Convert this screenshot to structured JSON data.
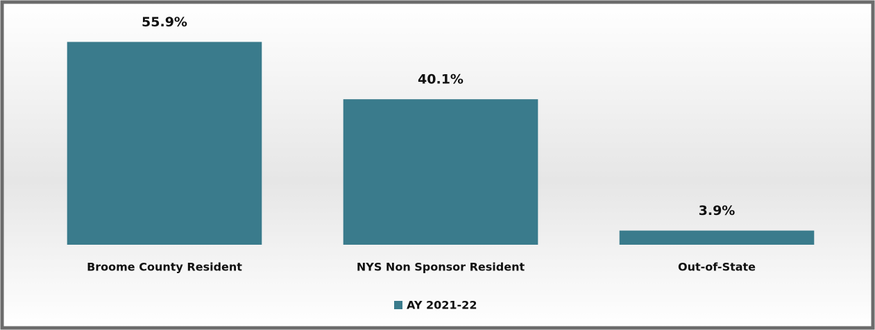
{
  "chart_data": {
    "type": "bar",
    "categories": [
      "Broome County Resident",
      "NYS Non Sponsor Resident",
      "Out-of-State"
    ],
    "series": [
      {
        "name": "AY 2021-22",
        "color": "#3a7b8c",
        "values": [
          55.9,
          40.1,
          3.9
        ],
        "value_labels": [
          "55.9%",
          "40.1%",
          "3.9%"
        ]
      }
    ],
    "ylim": [
      0,
      60
    ],
    "legend": "bottom"
  }
}
